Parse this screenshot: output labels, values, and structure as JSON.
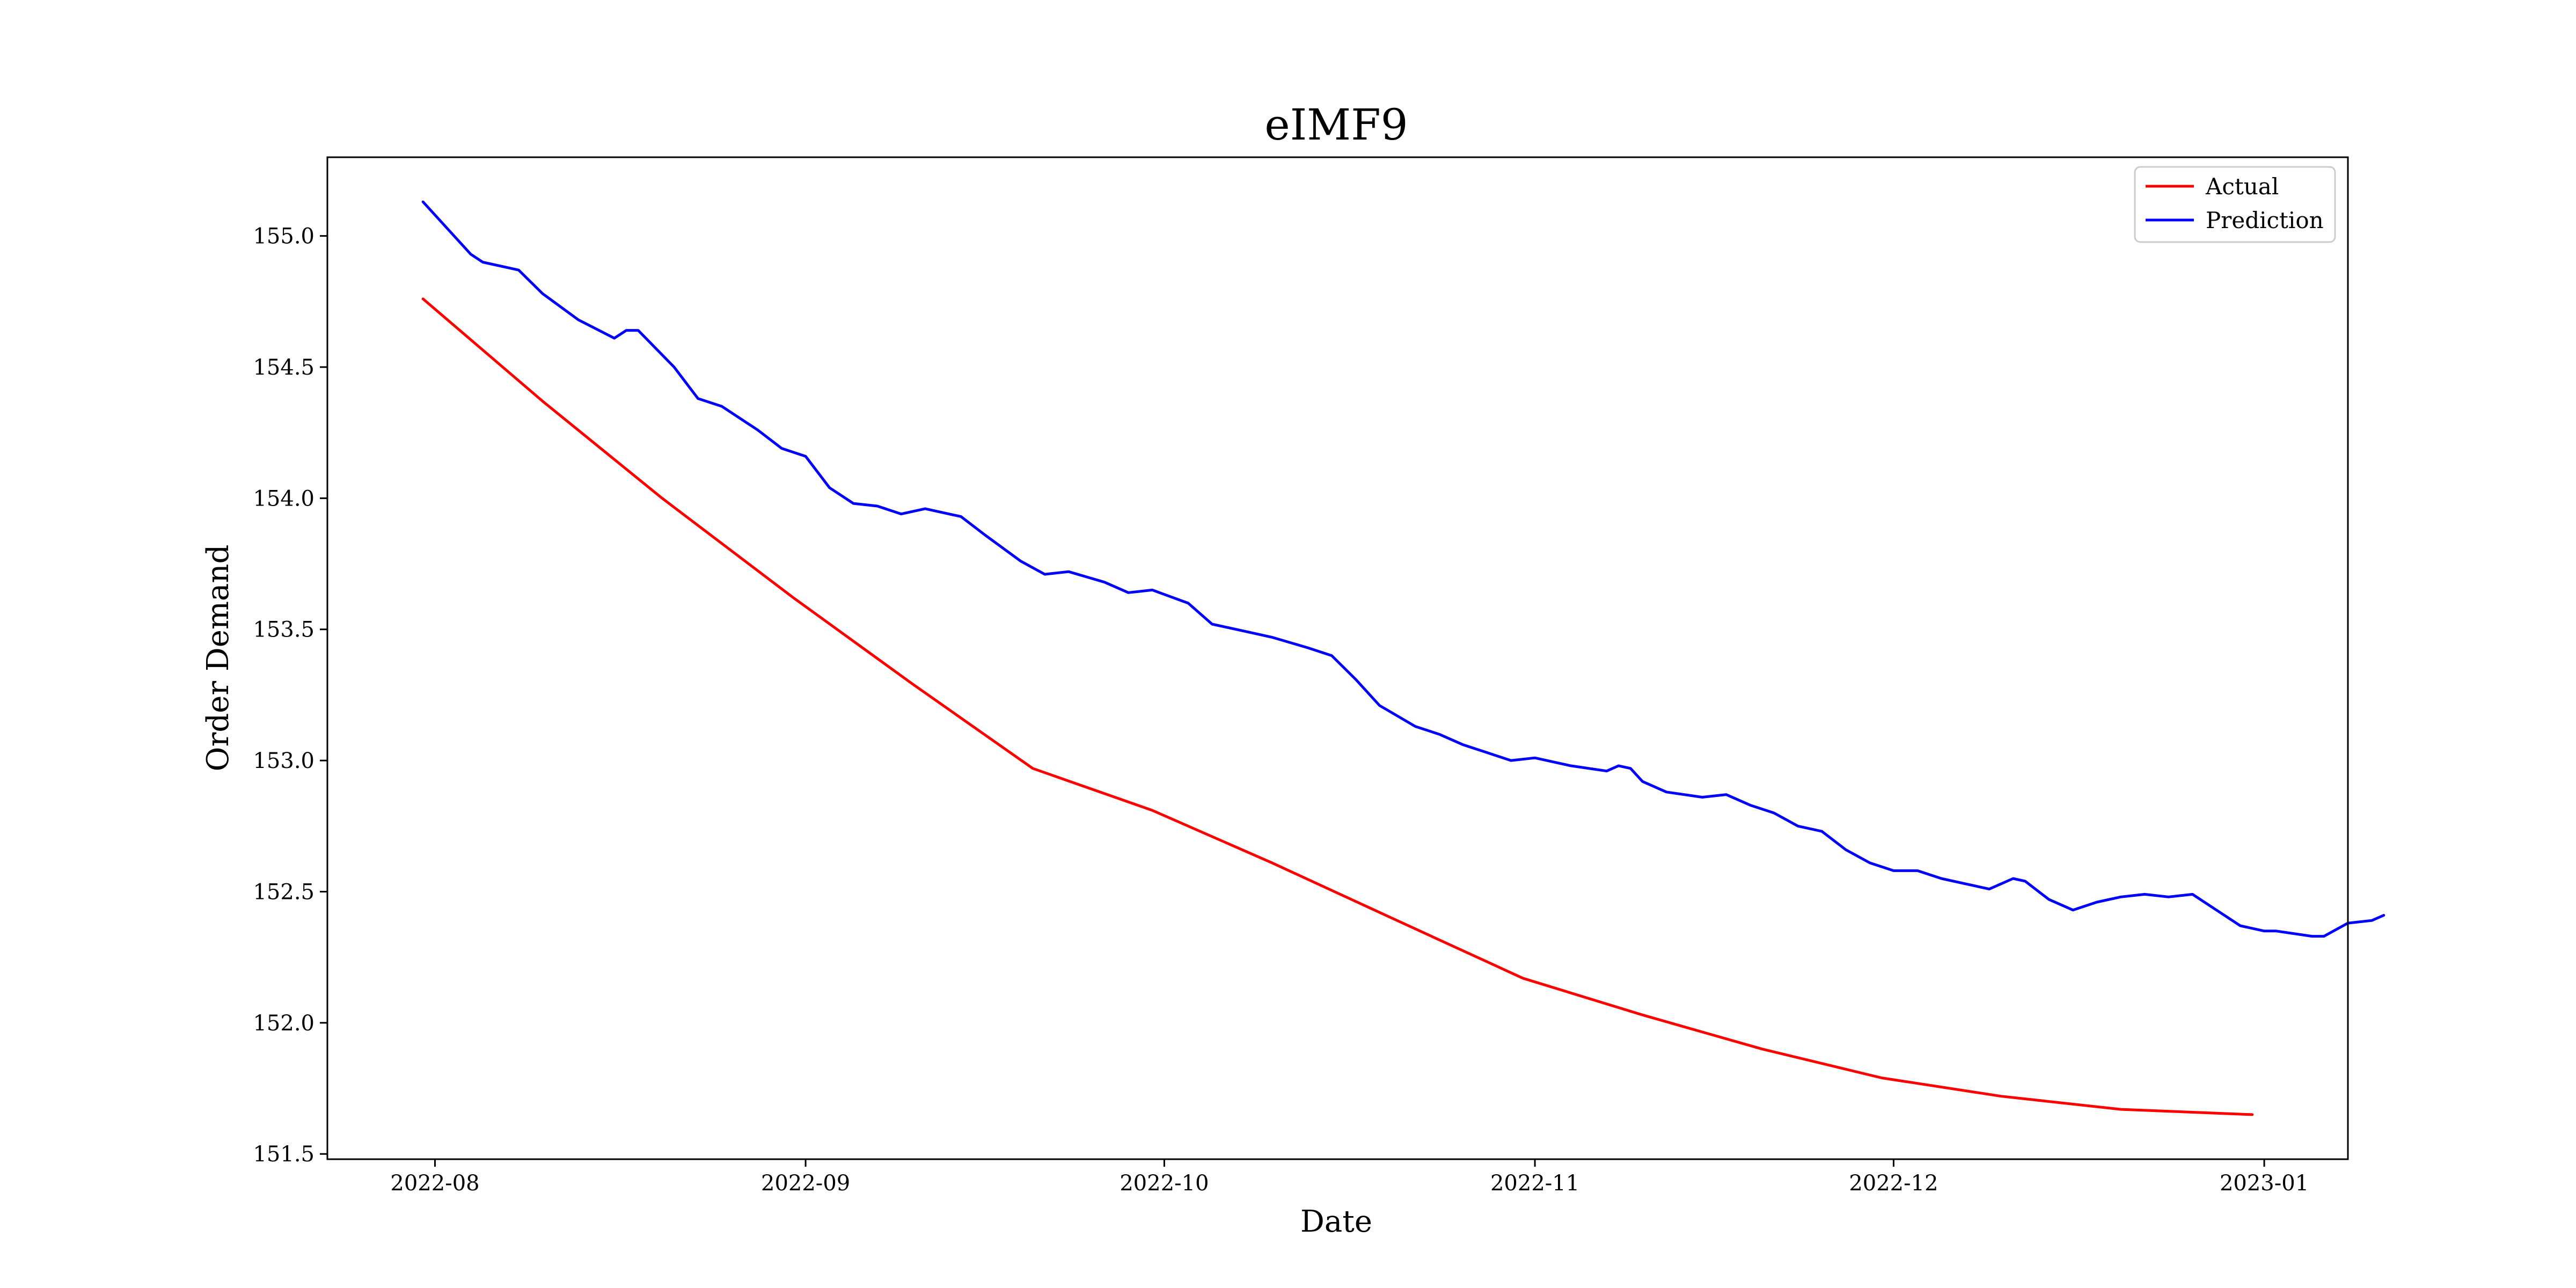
{
  "chart_data": {
    "type": "line",
    "title": "eIMF9",
    "xlabel": "Date",
    "ylabel": "Order Demand",
    "x_axis_type": "date",
    "xlim": [
      "2022-07-23",
      "2023-01-08"
    ],
    "ylim": [
      151.48,
      155.3
    ],
    "x_ticks": [
      "2022-08-01",
      "2022-09-01",
      "2022-10-01",
      "2022-11-01",
      "2022-12-01",
      "2023-01-01"
    ],
    "x_tick_labels": [
      "2022-08",
      "2022-09",
      "2022-10",
      "2022-11",
      "2022-12",
      "2023-01"
    ],
    "y_ticks": [
      151.5,
      152.0,
      152.5,
      153.0,
      153.5,
      154.0,
      154.5,
      155.0
    ],
    "y_tick_labels": [
      "151.5",
      "152.0",
      "152.5",
      "153.0",
      "153.5",
      "154.0",
      "154.5",
      "155.0"
    ],
    "grid": false,
    "legend_position": "top-right",
    "series": [
      {
        "name": "Actual",
        "color": "#ff0000",
        "points": [
          [
            "2022-07-31",
            154.76
          ],
          [
            "2022-08-10",
            154.37
          ],
          [
            "2022-08-20",
            154.0
          ],
          [
            "2022-08-31",
            153.62
          ],
          [
            "2022-09-10",
            153.29
          ],
          [
            "2022-09-20",
            152.97
          ],
          [
            "2022-09-30",
            152.81
          ],
          [
            "2022-10-10",
            152.61
          ],
          [
            "2022-10-20",
            152.4
          ],
          [
            "2022-10-31",
            152.17
          ],
          [
            "2022-11-10",
            152.03
          ],
          [
            "2022-11-20",
            151.9
          ],
          [
            "2022-11-30",
            151.79
          ],
          [
            "2022-12-10",
            151.72
          ],
          [
            "2022-12-20",
            151.67
          ],
          [
            "2022-12-31",
            151.65
          ]
        ]
      },
      {
        "name": "Prediction",
        "color": "#0000ff",
        "points": [
          [
            "2022-07-31",
            155.13
          ],
          [
            "2022-08-02",
            155.03
          ],
          [
            "2022-08-04",
            154.93
          ],
          [
            "2022-08-05",
            154.9
          ],
          [
            "2022-08-08",
            154.87
          ],
          [
            "2022-08-10",
            154.78
          ],
          [
            "2022-08-13",
            154.68
          ],
          [
            "2022-08-16",
            154.61
          ],
          [
            "2022-08-17",
            154.64
          ],
          [
            "2022-08-18",
            154.64
          ],
          [
            "2022-08-21",
            154.5
          ],
          [
            "2022-08-23",
            154.38
          ],
          [
            "2022-08-25",
            154.35
          ],
          [
            "2022-08-28",
            154.26
          ],
          [
            "2022-08-30",
            154.19
          ],
          [
            "2022-09-01",
            154.16
          ],
          [
            "2022-09-03",
            154.04
          ],
          [
            "2022-09-05",
            153.98
          ],
          [
            "2022-09-07",
            153.97
          ],
          [
            "2022-09-09",
            153.94
          ],
          [
            "2022-09-11",
            153.96
          ],
          [
            "2022-09-14",
            153.93
          ],
          [
            "2022-09-16",
            153.86
          ],
          [
            "2022-09-19",
            153.76
          ],
          [
            "2022-09-21",
            153.71
          ],
          [
            "2022-09-23",
            153.72
          ],
          [
            "2022-09-26",
            153.68
          ],
          [
            "2022-09-28",
            153.64
          ],
          [
            "2022-09-30",
            153.65
          ],
          [
            "2022-10-03",
            153.6
          ],
          [
            "2022-10-05",
            153.52
          ],
          [
            "2022-10-08",
            153.49
          ],
          [
            "2022-10-10",
            153.47
          ],
          [
            "2022-10-13",
            153.43
          ],
          [
            "2022-10-15",
            153.4
          ],
          [
            "2022-10-17",
            153.31
          ],
          [
            "2022-10-19",
            153.21
          ],
          [
            "2022-10-22",
            153.13
          ],
          [
            "2022-10-24",
            153.1
          ],
          [
            "2022-10-26",
            153.06
          ],
          [
            "2022-10-28",
            153.03
          ],
          [
            "2022-10-30",
            153.0
          ],
          [
            "2022-11-01",
            153.01
          ],
          [
            "2022-11-04",
            152.98
          ],
          [
            "2022-11-07",
            152.96
          ],
          [
            "2022-11-08",
            152.98
          ],
          [
            "2022-11-09",
            152.97
          ],
          [
            "2022-11-10",
            152.92
          ],
          [
            "2022-11-12",
            152.88
          ],
          [
            "2022-11-15",
            152.86
          ],
          [
            "2022-11-17",
            152.87
          ],
          [
            "2022-11-19",
            152.83
          ],
          [
            "2022-11-21",
            152.8
          ],
          [
            "2022-11-23",
            152.75
          ],
          [
            "2022-11-25",
            152.73
          ],
          [
            "2022-11-27",
            152.66
          ],
          [
            "2022-11-29",
            152.61
          ],
          [
            "2022-12-01",
            152.58
          ],
          [
            "2022-12-03",
            152.58
          ],
          [
            "2022-12-05",
            152.55
          ],
          [
            "2022-12-07",
            152.53
          ],
          [
            "2022-12-09",
            152.51
          ],
          [
            "2022-12-11",
            152.55
          ],
          [
            "2022-12-12",
            152.54
          ],
          [
            "2022-12-14",
            152.47
          ],
          [
            "2022-12-16",
            152.43
          ],
          [
            "2022-12-18",
            152.46
          ],
          [
            "2022-12-20",
            152.48
          ],
          [
            "2022-12-22",
            152.49
          ],
          [
            "2022-12-24",
            152.48
          ],
          [
            "2022-12-26",
            152.49
          ],
          [
            "2022-12-28",
            152.43
          ],
          [
            "2022-12-30",
            152.37
          ],
          [
            "2023-01-01",
            152.35
          ],
          [
            "2023-01-02",
            152.35
          ],
          [
            "2023-01-05",
            152.33
          ],
          [
            "2023-01-06",
            152.33
          ],
          [
            "2023-01-08",
            152.38
          ],
          [
            "2023-01-10",
            152.39
          ],
          [
            "2023-01-11",
            152.41
          ]
        ]
      }
    ]
  }
}
